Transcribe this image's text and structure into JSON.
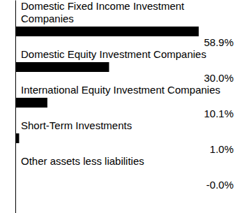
{
  "chart_data": {
    "type": "bar",
    "orientation": "horizontal",
    "categories": [
      "Domestic Fixed Income Investment Companies",
      "Domestic Equity Investment Companies",
      "International Equity Investment Companies",
      "Short-Term Investments",
      "Other assets less liabilities"
    ],
    "values": [
      58.9,
      30.0,
      10.1,
      1.0,
      0
    ],
    "value_labels": [
      "58.9%",
      "30.0%",
      "10.1%",
      "1.0%",
      "-0.0%"
    ],
    "color": "#000000",
    "data_labels": true,
    "tick_labels": false
  }
}
